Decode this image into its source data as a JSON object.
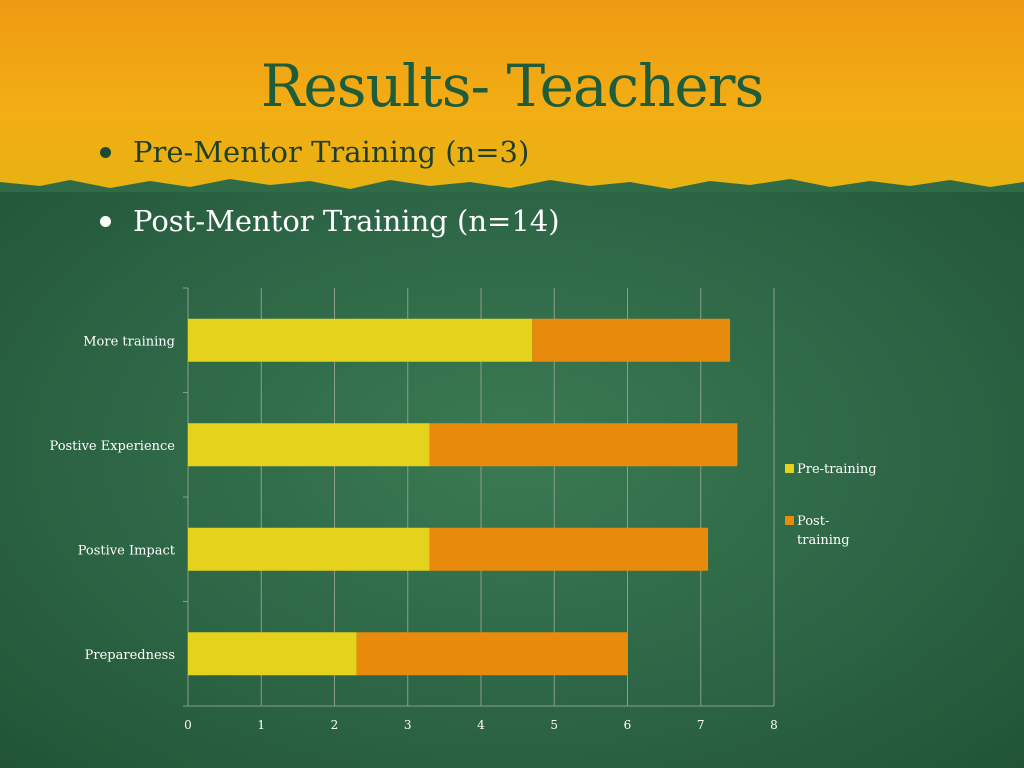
{
  "slide": {
    "title": "Results- Teachers",
    "bullets": [
      "Pre-Mentor Training (n=3)",
      "Post-Mentor Training (n=14)"
    ]
  },
  "colors": {
    "pre_training": "#e5d21c",
    "post_training": "#e88a0c",
    "gridline": "#8a9e8f",
    "axis_text": "#ffffff"
  },
  "chart_data": {
    "type": "bar",
    "orientation": "horizontal",
    "stacked": true,
    "categories": [
      "More training",
      "Postive Experience",
      "Postive Impact",
      "Preparedness"
    ],
    "series": [
      {
        "name": "Pre-training",
        "values": [
          4.7,
          3.3,
          3.3,
          2.3
        ]
      },
      {
        "name": "Post-\ntraining",
        "values": [
          2.7,
          4.2,
          3.8,
          3.7
        ]
      }
    ],
    "xlim": [
      0,
      8
    ],
    "xticks": [
      "0",
      "1",
      "2",
      "3",
      "4",
      "5",
      "6",
      "7",
      "8"
    ],
    "grid": true,
    "legend": "right"
  }
}
